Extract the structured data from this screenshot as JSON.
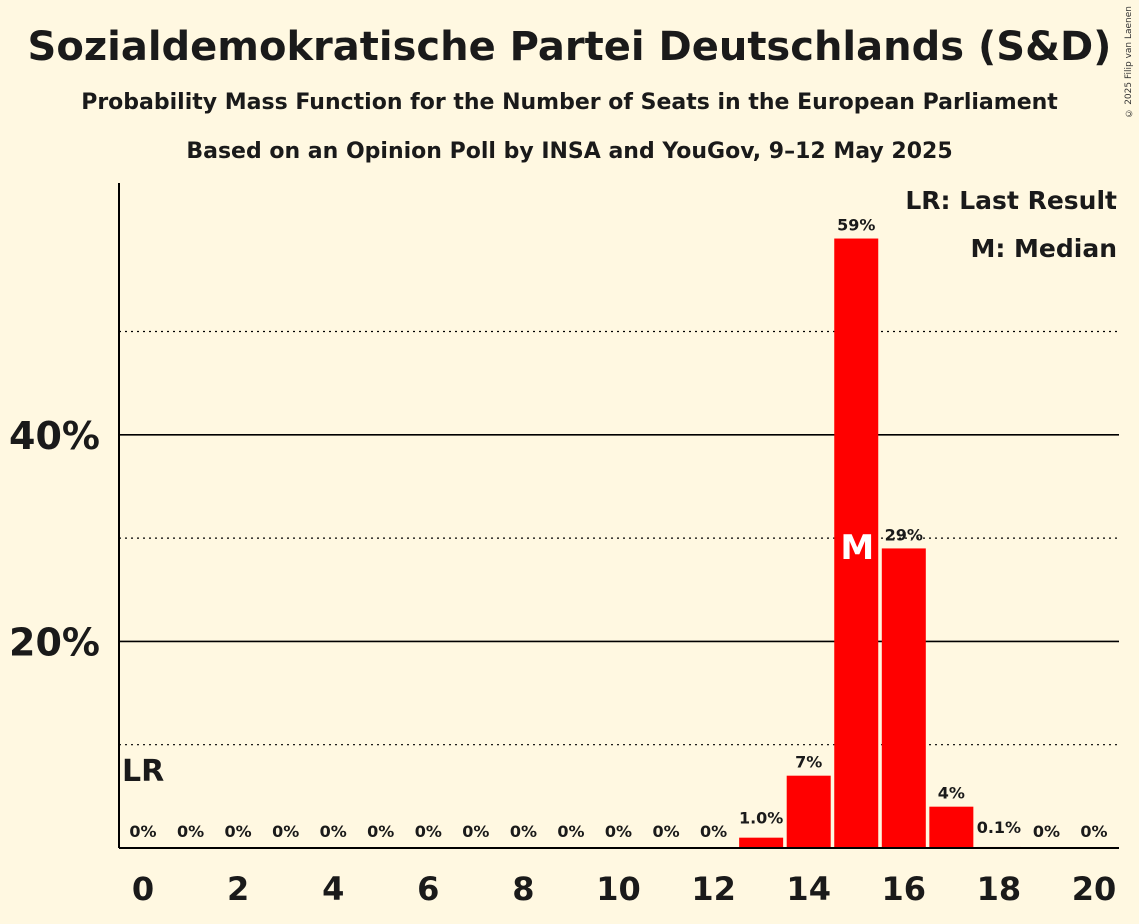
{
  "title": "Sozialdemokratische Partei Deutschlands (S&D)",
  "subtitle": "Probability Mass Function for the Number of Seats in the European Parliament",
  "subtitle2": "Based on an Opinion Poll by INSA and YouGov, 9–12 May 2025",
  "copyright": "© 2025 Filip van Laenen",
  "legend": {
    "last_result": "LR: Last Result",
    "median": "M: Median"
  },
  "colors": {
    "bar": "#ff0000",
    "background": "#fff8e1",
    "axis": "#000000"
  },
  "chart_data": {
    "type": "bar",
    "x": [
      0,
      1,
      2,
      3,
      4,
      5,
      6,
      7,
      8,
      9,
      10,
      11,
      12,
      13,
      14,
      15,
      16,
      17,
      18,
      19,
      20
    ],
    "values": [
      0,
      0,
      0,
      0,
      0,
      0,
      0,
      0,
      0,
      0,
      0,
      0,
      0,
      1.0,
      7,
      59,
      29,
      4,
      0.1,
      0,
      0
    ],
    "labels": [
      "0%",
      "0%",
      "0%",
      "0%",
      "0%",
      "0%",
      "0%",
      "0%",
      "0%",
      "0%",
      "0%",
      "0%",
      "0%",
      "1.0%",
      "7%",
      "59%",
      "29%",
      "4%",
      "0.1%",
      "0%",
      "0%"
    ],
    "x_tick_labels": [
      "0",
      "2",
      "4",
      "6",
      "8",
      "10",
      "12",
      "14",
      "16",
      "18",
      "20"
    ],
    "x_ticks": [
      0,
      2,
      4,
      6,
      8,
      10,
      12,
      14,
      16,
      18,
      20
    ],
    "y_ticks": [
      20,
      40
    ],
    "y_tick_labels": [
      "20%",
      "40%"
    ],
    "y_minor_gridlines": [
      10,
      30,
      50
    ],
    "ylim": [
      0,
      64
    ],
    "last_result": {
      "seat": 0,
      "label": "LR"
    },
    "median": {
      "seat": 15,
      "label": "M"
    },
    "legend_placement": "top-right"
  }
}
